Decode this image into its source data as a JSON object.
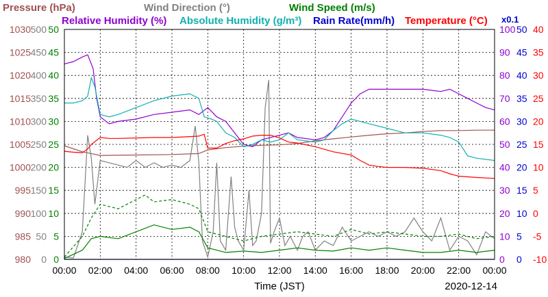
{
  "chart_data": {
    "type": "line",
    "date": "2020-12-14",
    "xlabel": "Time (JST)",
    "x_ticks": [
      "00:00",
      "02:00",
      "04:00",
      "06:00",
      "08:00",
      "10:00",
      "12:00",
      "14:00",
      "16:00",
      "18:00",
      "20:00",
      "22:00",
      "00:00"
    ],
    "x_range_hours": [
      0,
      24
    ],
    "grid": true,
    "legend": [
      {
        "label": "Pressure (hPa)",
        "color": "#a05050"
      },
      {
        "label": "Wind Direction (°)",
        "color": "#808080"
      },
      {
        "label": "Wind Speed (m/s)",
        "color": "#008000"
      },
      {
        "label": "Relative Humidity (%)",
        "color": "#9000d0"
      },
      {
        "label": "Absolute Humidity (g/m³)",
        "color": "#10b0b0"
      },
      {
        "label": "Rain Rate(mm/h)",
        "color": "#0000d0"
      },
      {
        "label": "Temperature (°C)",
        "color": "#ff0000"
      }
    ],
    "rain_rate_multiplier": "x0.1",
    "axes": {
      "pressure": {
        "ticks": [
          "980",
          "985",
          "990",
          "995",
          "1000",
          "1005",
          "1010",
          "1015",
          "1020",
          "1025",
          "1030"
        ],
        "range": [
          980,
          1030
        ],
        "color": "#a05050"
      },
      "wind_direction": {
        "ticks": [
          "0",
          "50",
          "100",
          "150",
          "200",
          "250",
          "300",
          "350",
          "400",
          "450",
          "500"
        ],
        "range": [
          0,
          500
        ],
        "color": "#808080"
      },
      "wind_speed": {
        "ticks": [
          "0",
          "5",
          "10",
          "15",
          "20",
          "25",
          "30",
          "35",
          "40",
          "45",
          "50"
        ],
        "range": [
          0,
          50
        ],
        "color": "#008000"
      },
      "humidity": {
        "ticks": [
          "0",
          "10",
          "20",
          "30",
          "40",
          "50",
          "60",
          "70",
          "80",
          "90",
          "100"
        ],
        "range": [
          0,
          100
        ],
        "color": "#9000d0"
      },
      "rain_rate": {
        "ticks": [
          "0",
          "5",
          "10",
          "15",
          "20",
          "25",
          "30",
          "35",
          "40",
          "45",
          "50"
        ],
        "range": [
          0,
          50
        ],
        "color": "#0000d0"
      },
      "temperature": {
        "ticks": [
          "-10",
          "-5",
          "0",
          "5",
          "10",
          "15",
          "20",
          "25",
          "30",
          "35",
          "40"
        ],
        "range": [
          -10,
          40
        ],
        "color": "#ff0000"
      }
    },
    "series": [
      {
        "name": "Pressure (hPa)",
        "axis": "pressure",
        "color": "#a05050",
        "dash": false,
        "x": [
          0,
          1,
          2,
          4,
          6,
          7.5,
          8,
          9,
          10,
          11,
          12,
          13,
          14,
          15,
          16,
          17,
          18,
          19,
          20,
          21,
          22,
          23,
          24
        ],
        "y": [
          1004.7,
          1003.4,
          1002.6,
          1002.7,
          1002.8,
          1003.0,
          1003.8,
          1004.3,
          1004.6,
          1004.8,
          1004.9,
          1005.2,
          1005.8,
          1006.2,
          1006.6,
          1007.0,
          1007.3,
          1007.5,
          1007.8,
          1008.0,
          1008.0,
          1008.1,
          1008.1
        ]
      },
      {
        "name": "Wind Direction (°)",
        "axis": "wind_direction",
        "color": "#808080",
        "dash": false,
        "x": [
          0,
          0.5,
          1.0,
          1.3,
          1.5,
          1.7,
          2.0,
          2.5,
          3,
          3.5,
          4,
          4.5,
          5,
          5.5,
          6,
          6.5,
          7,
          7.3,
          7.5,
          7.7,
          8.0,
          8.3,
          8.5,
          8.7,
          9.0,
          9.3,
          9.5,
          9.7,
          10.0,
          10.3,
          10.5,
          10.7,
          11.0,
          11.2,
          11.4,
          11.5,
          11.7,
          12.0,
          12.3,
          12.6,
          13.0,
          13.3,
          13.6,
          14.0,
          14.5,
          15,
          15.5,
          16,
          16.5,
          17,
          17.5,
          18,
          18.5,
          19,
          19.5,
          20,
          20.5,
          21,
          21.5,
          22,
          22.5,
          23,
          23.5,
          24
        ],
        "y": [
          5,
          3,
          60,
          270,
          220,
          120,
          215,
          210,
          205,
          200,
          215,
          200,
          210,
          200,
          205,
          200,
          215,
          290,
          210,
          40,
          5,
          60,
          210,
          40,
          20,
          180,
          70,
          40,
          20,
          150,
          30,
          40,
          100,
          330,
          390,
          35,
          60,
          90,
          30,
          50,
          20,
          50,
          60,
          20,
          40,
          30,
          70,
          40,
          50,
          60,
          50,
          60,
          50,
          60,
          90,
          60,
          40,
          90,
          20,
          50,
          40,
          10,
          60,
          45
        ]
      },
      {
        "name": "Wind Speed (m/s) avg",
        "axis": "wind_speed",
        "color": "#008000",
        "dash": false,
        "x": [
          0,
          1,
          1.5,
          2,
          3,
          4,
          5,
          6,
          7,
          7.5,
          8,
          9,
          10,
          11,
          12,
          13,
          14,
          15,
          16,
          17,
          18,
          19,
          20,
          21,
          22,
          23,
          24
        ],
        "y": [
          0.2,
          2,
          4.5,
          5,
          4.5,
          6,
          7.5,
          6.5,
          7,
          6,
          2.5,
          1.5,
          1.8,
          1.5,
          2,
          2.5,
          2,
          1.8,
          2.5,
          2,
          2.5,
          2,
          1.5,
          1.5,
          2,
          1.5,
          2
        ]
      },
      {
        "name": "Wind Speed (m/s) gust",
        "axis": "wind_speed",
        "color": "#008000",
        "dash": true,
        "x": [
          0,
          1,
          1.5,
          2,
          3,
          4,
          4.5,
          5,
          6,
          7,
          7.5,
          8,
          9,
          10,
          11,
          12,
          13,
          14,
          15,
          16,
          17,
          18,
          19,
          20,
          21,
          22,
          23,
          24
        ],
        "y": [
          0.5,
          5,
          9,
          12,
          11,
          13,
          14,
          12.5,
          13,
          12,
          11,
          6,
          5,
          4,
          5,
          5.5,
          6,
          5.5,
          5,
          6.5,
          5.5,
          6,
          5.5,
          5,
          5,
          5.5,
          4.5,
          5
        ]
      },
      {
        "name": "Relative Humidity (%)",
        "axis": "humidity",
        "color": "#9000d0",
        "dash": false,
        "x": [
          0,
          0.5,
          1,
          1.3,
          1.6,
          1.8,
          2,
          2.5,
          3,
          4,
          5,
          6,
          7,
          7.5,
          8,
          8.5,
          9,
          9.5,
          10,
          10.5,
          11,
          11.5,
          12,
          12.5,
          13,
          14,
          14.5,
          15,
          15.5,
          16,
          16.5,
          17,
          18,
          19,
          20,
          21,
          21.5,
          22,
          22.5,
          23,
          23.5,
          24
        ],
        "y": [
          85,
          86,
          88,
          89,
          83,
          70,
          62,
          59,
          60,
          61,
          63,
          64,
          65,
          63,
          66,
          62,
          60,
          55,
          50,
          49,
          52,
          53,
          54,
          55,
          53,
          52,
          53,
          56,
          62,
          68,
          72,
          74,
          74,
          74,
          74,
          73,
          74,
          72,
          70,
          68,
          66,
          65
        ]
      },
      {
        "name": "Absolute Humidity (g/m³)",
        "axis": "humidity",
        "color": "#10b0b0",
        "dash": false,
        "x": [
          0,
          0.5,
          1,
          1.3,
          1.5,
          1.7,
          2,
          2.5,
          3,
          4,
          5,
          6,
          7,
          7.5,
          7.8,
          8.2,
          8.5,
          9,
          9.5,
          10,
          10.5,
          11,
          11.5,
          12,
          12.5,
          13,
          14,
          14.5,
          15,
          15.5,
          16,
          17,
          18,
          19,
          20,
          21,
          21.5,
          22,
          22.5,
          23,
          24
        ],
        "y": [
          68,
          68,
          69,
          71,
          79,
          75,
          63,
          62,
          63,
          66,
          69,
          71,
          72,
          70,
          62,
          61,
          60,
          55,
          53,
          49,
          50,
          52,
          51,
          52,
          55,
          52,
          51,
          52,
          56,
          59,
          61,
          59,
          57,
          55,
          55,
          54,
          53,
          51,
          45,
          44,
          43
        ]
      },
      {
        "name": "Rain Rate(mm/h)",
        "axis": "rain_rate",
        "color": "#0000d0",
        "dash": false,
        "x": [
          0,
          24
        ],
        "y": [
          0,
          0
        ]
      },
      {
        "name": "Temperature (°C)",
        "axis": "temperature",
        "color": "#ff0000",
        "dash": false,
        "x": [
          0,
          0.5,
          1.0,
          1.3,
          1.5,
          2.0,
          2.5,
          3,
          4,
          5,
          6,
          7,
          7.5,
          7.8,
          8.0,
          8.5,
          9,
          9.5,
          10,
          10.5,
          11,
          11.5,
          12,
          12.5,
          13,
          14,
          15,
          16,
          16.5,
          17,
          17.5,
          18,
          19,
          20,
          21,
          21.5,
          22,
          23,
          24
        ],
        "y": [
          13.5,
          13.3,
          13.2,
          14,
          15,
          16.5,
          16.3,
          16.3,
          16.4,
          16.5,
          16.5,
          16.7,
          16.8,
          17.2,
          14.2,
          14.2,
          15.2,
          15.8,
          16.2,
          16.8,
          17.0,
          17.0,
          16.4,
          15.5,
          15.3,
          14.5,
          13.4,
          12.7,
          11.5,
          10.5,
          10.2,
          10.0,
          10.0,
          9.8,
          9.3,
          8.6,
          8.1,
          7.8,
          7.6
        ]
      }
    ]
  }
}
